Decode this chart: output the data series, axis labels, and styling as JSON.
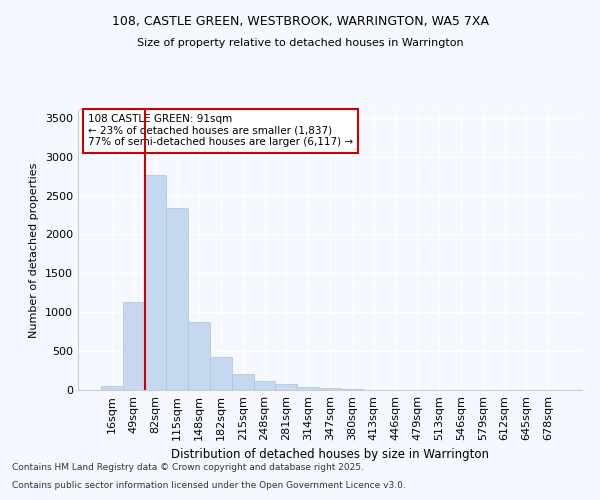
{
  "title1": "108, CASTLE GREEN, WESTBROOK, WARRINGTON, WA5 7XA",
  "title2": "Size of property relative to detached houses in Warrington",
  "xlabel": "Distribution of detached houses by size in Warrington",
  "ylabel": "Number of detached properties",
  "categories": [
    "16sqm",
    "49sqm",
    "82sqm",
    "115sqm",
    "148sqm",
    "182sqm",
    "215sqm",
    "248sqm",
    "281sqm",
    "314sqm",
    "347sqm",
    "380sqm",
    "413sqm",
    "446sqm",
    "479sqm",
    "513sqm",
    "546sqm",
    "579sqm",
    "612sqm",
    "645sqm",
    "678sqm"
  ],
  "values": [
    50,
    1130,
    2760,
    2340,
    880,
    430,
    200,
    110,
    80,
    40,
    20,
    10,
    5,
    3,
    2,
    1,
    1,
    1,
    1,
    1,
    0
  ],
  "bar_color": "#c5d8f0",
  "bar_edge_color": "#a8c4e0",
  "vline_color": "#cc0000",
  "ylim": [
    0,
    3600
  ],
  "yticks": [
    0,
    500,
    1000,
    1500,
    2000,
    2500,
    3000,
    3500
  ],
  "annotation_title": "108 CASTLE GREEN: 91sqm",
  "annotation_line1": "← 23% of detached houses are smaller (1,837)",
  "annotation_line2": "77% of semi-detached houses are larger (6,117) →",
  "annotation_box_facecolor": "#ffffff",
  "annotation_box_edge": "#cc0000",
  "bg_color": "#f5f8ff",
  "grid_color": "#ffffff",
  "footnote1": "Contains HM Land Registry data © Crown copyright and database right 2025.",
  "footnote2": "Contains public sector information licensed under the Open Government Licence v3.0."
}
